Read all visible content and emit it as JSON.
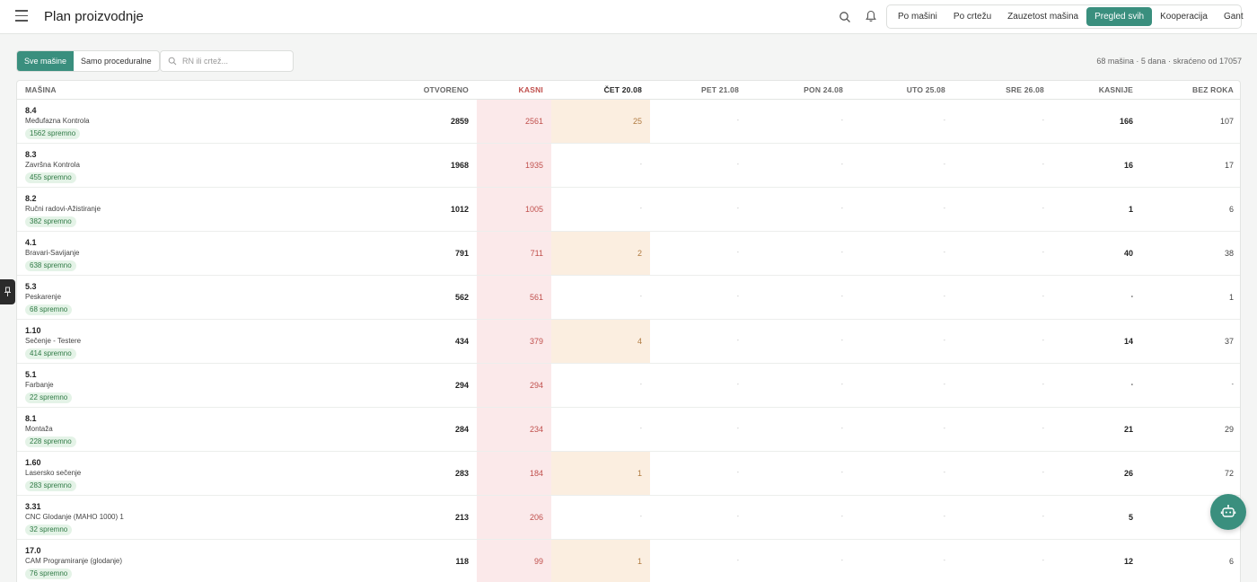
{
  "header": {
    "title": "Plan proizvodnje",
    "nav": [
      {
        "label": "Po mašini",
        "active": false
      },
      {
        "label": "Po crtežu",
        "active": false
      },
      {
        "label": "Zauzetost mašina",
        "active": false
      },
      {
        "label": "Pregled svih",
        "active": true
      },
      {
        "label": "Kooperacija",
        "active": false
      },
      {
        "label": "Gant",
        "active": false
      }
    ]
  },
  "filters": {
    "all_label": "Sve mašine",
    "procedural_label": "Samo proceduralne",
    "search_placeholder": "RN ili crtež..."
  },
  "summary": "68 mašina · 5 dana · skraćeno od 17057",
  "colors": {
    "accent": "#3a8f7e",
    "late": "#c0504d",
    "late_bg": "#fbe9ea",
    "today_bg": "#fbeee0",
    "ready": "#2f7a45"
  },
  "columns": {
    "masina": "MAŠINA",
    "otvoreno": "OTVORENO",
    "kasni": "KASNI",
    "d1": "ČET 20.08",
    "d2": "PET 21.08",
    "d3": "PON 24.08",
    "d4": "UTO 25.08",
    "d5": "SRE 26.08",
    "kasnije": "KASNIJE",
    "bez_roka": "BEZ ROKA"
  },
  "rows": [
    {
      "code": "8.4",
      "name": "Međufazna Kontrola",
      "ready": "1562 spremno",
      "otvoreno": "2859",
      "kasni": "2561",
      "d1": "25",
      "d2": "-",
      "d3": "-",
      "d4": "-",
      "d5": "-",
      "kasnije": "166",
      "bez_roka": "107"
    },
    {
      "code": "8.3",
      "name": "Završna Kontrola",
      "ready": "455 spremno",
      "otvoreno": "1968",
      "kasni": "1935",
      "d1": "-",
      "d2": "-",
      "d3": "-",
      "d4": "-",
      "d5": "-",
      "kasnije": "16",
      "bez_roka": "17"
    },
    {
      "code": "8.2",
      "name": "Ručni radovi-Ažistiranje",
      "ready": "382 spremno",
      "otvoreno": "1012",
      "kasni": "1005",
      "d1": "-",
      "d2": "-",
      "d3": "-",
      "d4": "-",
      "d5": "-",
      "kasnije": "1",
      "bez_roka": "6"
    },
    {
      "code": "4.1",
      "name": "Bravari-Savijanje",
      "ready": "638 spremno",
      "otvoreno": "791",
      "kasni": "711",
      "d1": "2",
      "d2": "-",
      "d3": "-",
      "d4": "-",
      "d5": "-",
      "kasnije": "40",
      "bez_roka": "38"
    },
    {
      "code": "5.3",
      "name": "Peskarenje",
      "ready": "68 spremno",
      "otvoreno": "562",
      "kasni": "561",
      "d1": "-",
      "d2": "-",
      "d3": "-",
      "d4": "-",
      "d5": "-",
      "kasnije": "-",
      "bez_roka": "1"
    },
    {
      "code": "1.10",
      "name": "Sečenje - Testere",
      "ready": "414 spremno",
      "otvoreno": "434",
      "kasni": "379",
      "d1": "4",
      "d2": "-",
      "d3": "-",
      "d4": "-",
      "d5": "-",
      "kasnije": "14",
      "bez_roka": "37"
    },
    {
      "code": "5.1",
      "name": "Farbanje",
      "ready": "22 spremno",
      "otvoreno": "294",
      "kasni": "294",
      "d1": "-",
      "d2": "-",
      "d3": "-",
      "d4": "-",
      "d5": "-",
      "kasnije": "-",
      "bez_roka": "-"
    },
    {
      "code": "8.1",
      "name": "Montaža",
      "ready": "228 spremno",
      "otvoreno": "284",
      "kasni": "234",
      "d1": "-",
      "d2": "-",
      "d3": "-",
      "d4": "-",
      "d5": "-",
      "kasnije": "21",
      "bez_roka": "29"
    },
    {
      "code": "1.60",
      "name": "Lasersko sečenje",
      "ready": "283 spremno",
      "otvoreno": "283",
      "kasni": "184",
      "d1": "1",
      "d2": "-",
      "d3": "-",
      "d4": "-",
      "d5": "-",
      "kasnije": "26",
      "bez_roka": "72"
    },
    {
      "code": "3.31",
      "name": "CNC Glodanje (MAHO 1000) 1",
      "ready": "32 spremno",
      "otvoreno": "213",
      "kasni": "206",
      "d1": "-",
      "d2": "-",
      "d3": "-",
      "d4": "-",
      "d5": "-",
      "kasnije": "5",
      "bez_roka": ""
    },
    {
      "code": "17.0",
      "name": "CAM Programiranje (glodanje)",
      "ready": "76 spremno",
      "otvoreno": "118",
      "kasni": "99",
      "d1": "1",
      "d2": "-",
      "d3": "-",
      "d4": "-",
      "d5": "-",
      "kasnije": "12",
      "bez_roka": "6"
    }
  ]
}
